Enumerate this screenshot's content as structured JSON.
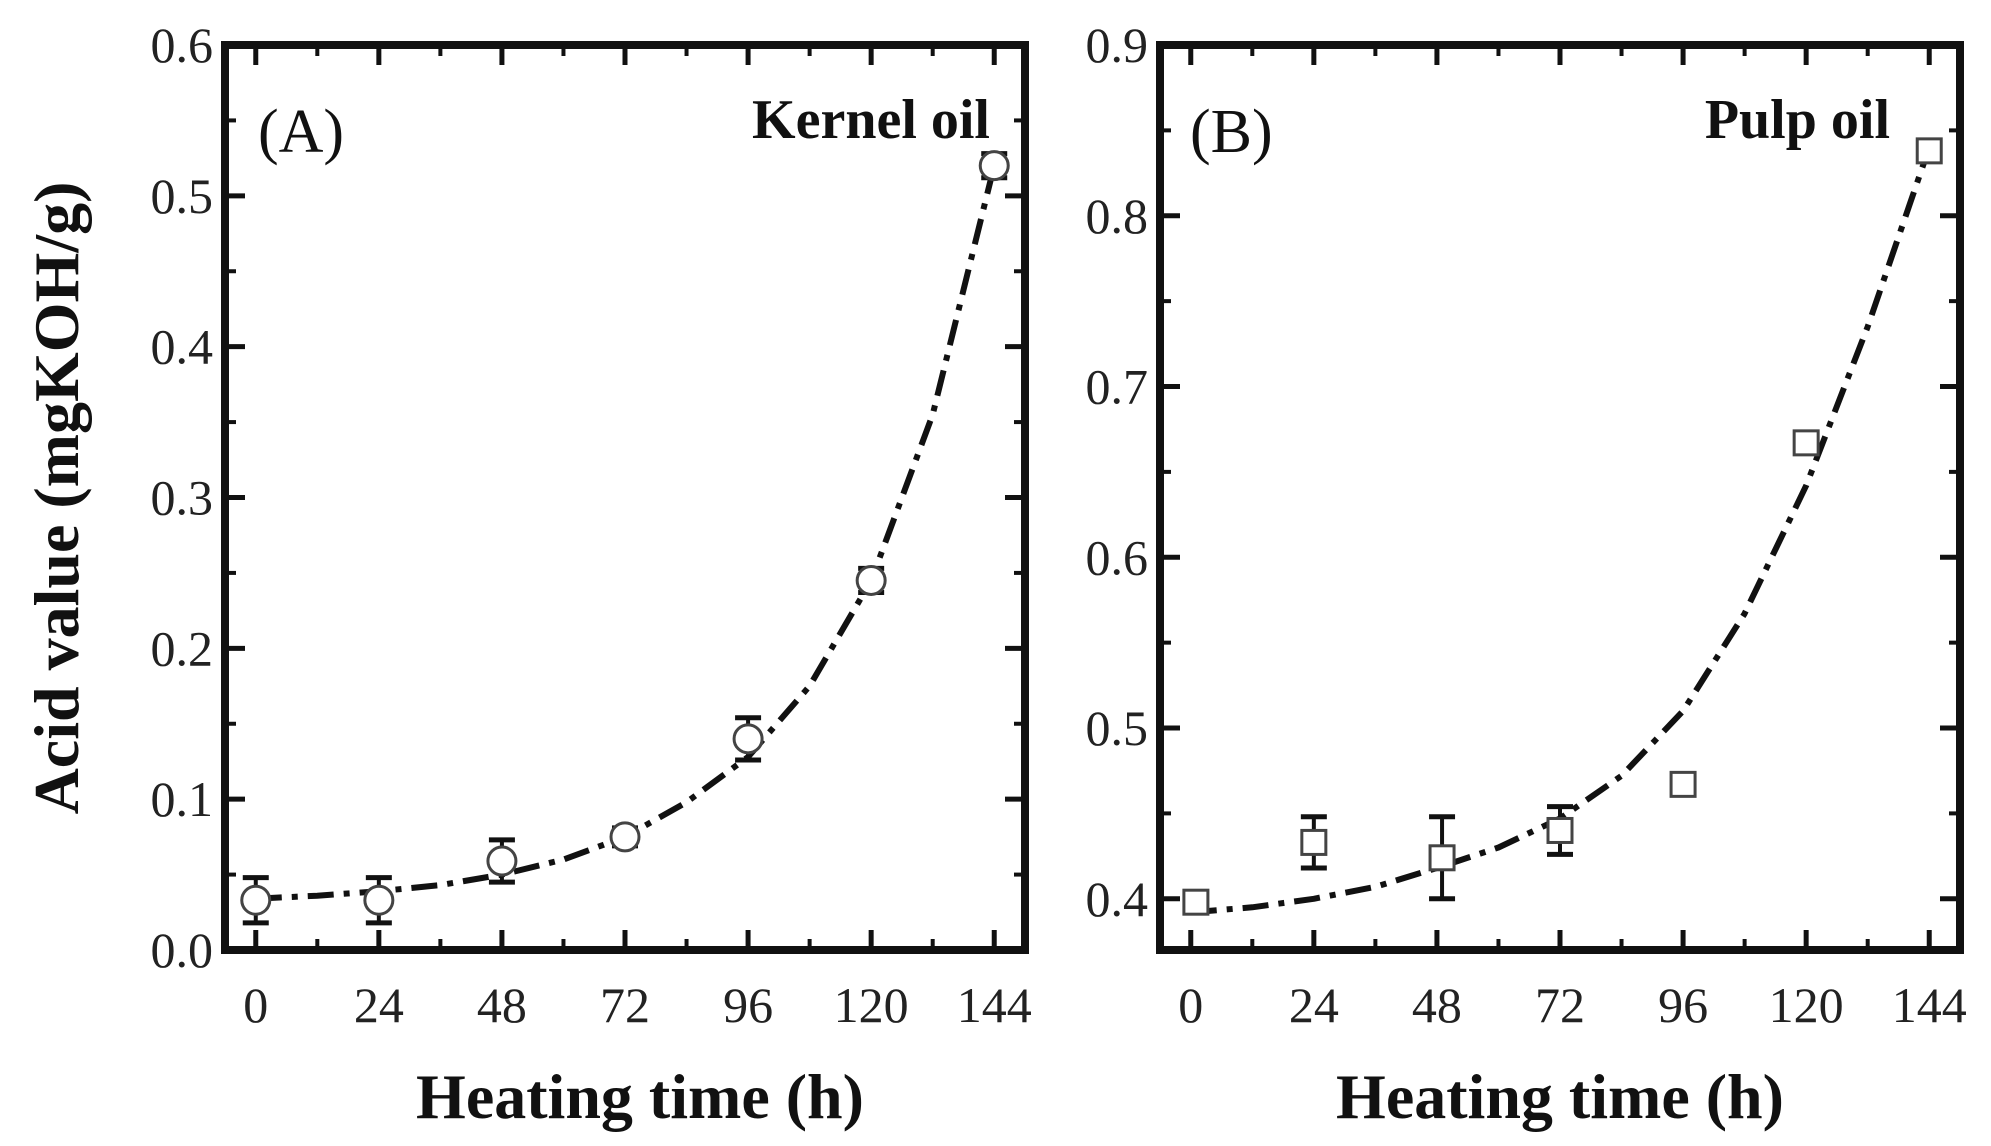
{
  "chart_data": [
    {
      "type": "scatter",
      "panel_label": "(A)",
      "title": "Kernel oil",
      "xlabel": "Heating time (h)",
      "ylabel": "Acid value (mgKOH/g)",
      "xlim": [
        -6,
        150
      ],
      "ylim": [
        0.0,
        0.6
      ],
      "xticks": [
        0,
        24,
        48,
        72,
        96,
        120,
        144
      ],
      "yticks": [
        0.0,
        0.1,
        0.2,
        0.3,
        0.4,
        0.5,
        0.6
      ],
      "ytick_labels": [
        "0.0",
        "0.1",
        "0.2",
        "0.3",
        "0.4",
        "0.5",
        "0.6"
      ],
      "marker": "circle",
      "grid": false,
      "series": [
        {
          "x": [
            0,
            24,
            48,
            72,
            96,
            120,
            144
          ],
          "y": [
            0.033,
            0.033,
            0.059,
            0.075,
            0.14,
            0.245,
            0.52
          ],
          "error": [
            0.015,
            0.015,
            0.014,
            0.006,
            0.014,
            0.008,
            0.008
          ]
        }
      ],
      "fit": {
        "style": "dash-dot",
        "x": [
          0,
          12,
          24,
          36,
          48,
          60,
          72,
          84,
          96,
          108,
          120,
          132,
          144
        ],
        "y": [
          0.034,
          0.036,
          0.039,
          0.043,
          0.05,
          0.06,
          0.075,
          0.098,
          0.128,
          0.175,
          0.245,
          0.355,
          0.52
        ]
      }
    },
    {
      "type": "scatter",
      "panel_label": "(B)",
      "title": "Pulp oil",
      "xlabel": "Heating time (h)",
      "ylabel": "",
      "xlim": [
        -6,
        150
      ],
      "ylim": [
        0.37,
        0.9
      ],
      "xticks": [
        0,
        24,
        48,
        72,
        96,
        120,
        144
      ],
      "yticks": [
        0.4,
        0.5,
        0.6,
        0.7,
        0.8,
        0.9
      ],
      "ytick_labels": [
        "0.4",
        "0.5",
        "0.6",
        "0.7",
        "0.8",
        "0.9"
      ],
      "marker": "square",
      "grid": false,
      "series": [
        {
          "x": [
            1,
            24,
            49,
            72,
            96,
            120,
            144
          ],
          "y": [
            0.398,
            0.433,
            0.424,
            0.44,
            0.467,
            0.667,
            0.838
          ],
          "error": [
            0.005,
            0.015,
            0.024,
            0.014,
            0.005,
            0.005,
            0.004
          ]
        }
      ],
      "fit": {
        "style": "dash-dot",
        "x": [
          0,
          12,
          24,
          36,
          48,
          60,
          72,
          84,
          96,
          108,
          120,
          132,
          144
        ],
        "y": [
          0.392,
          0.395,
          0.4,
          0.407,
          0.418,
          0.43,
          0.447,
          0.472,
          0.51,
          0.567,
          0.642,
          0.735,
          0.84
        ]
      }
    }
  ]
}
